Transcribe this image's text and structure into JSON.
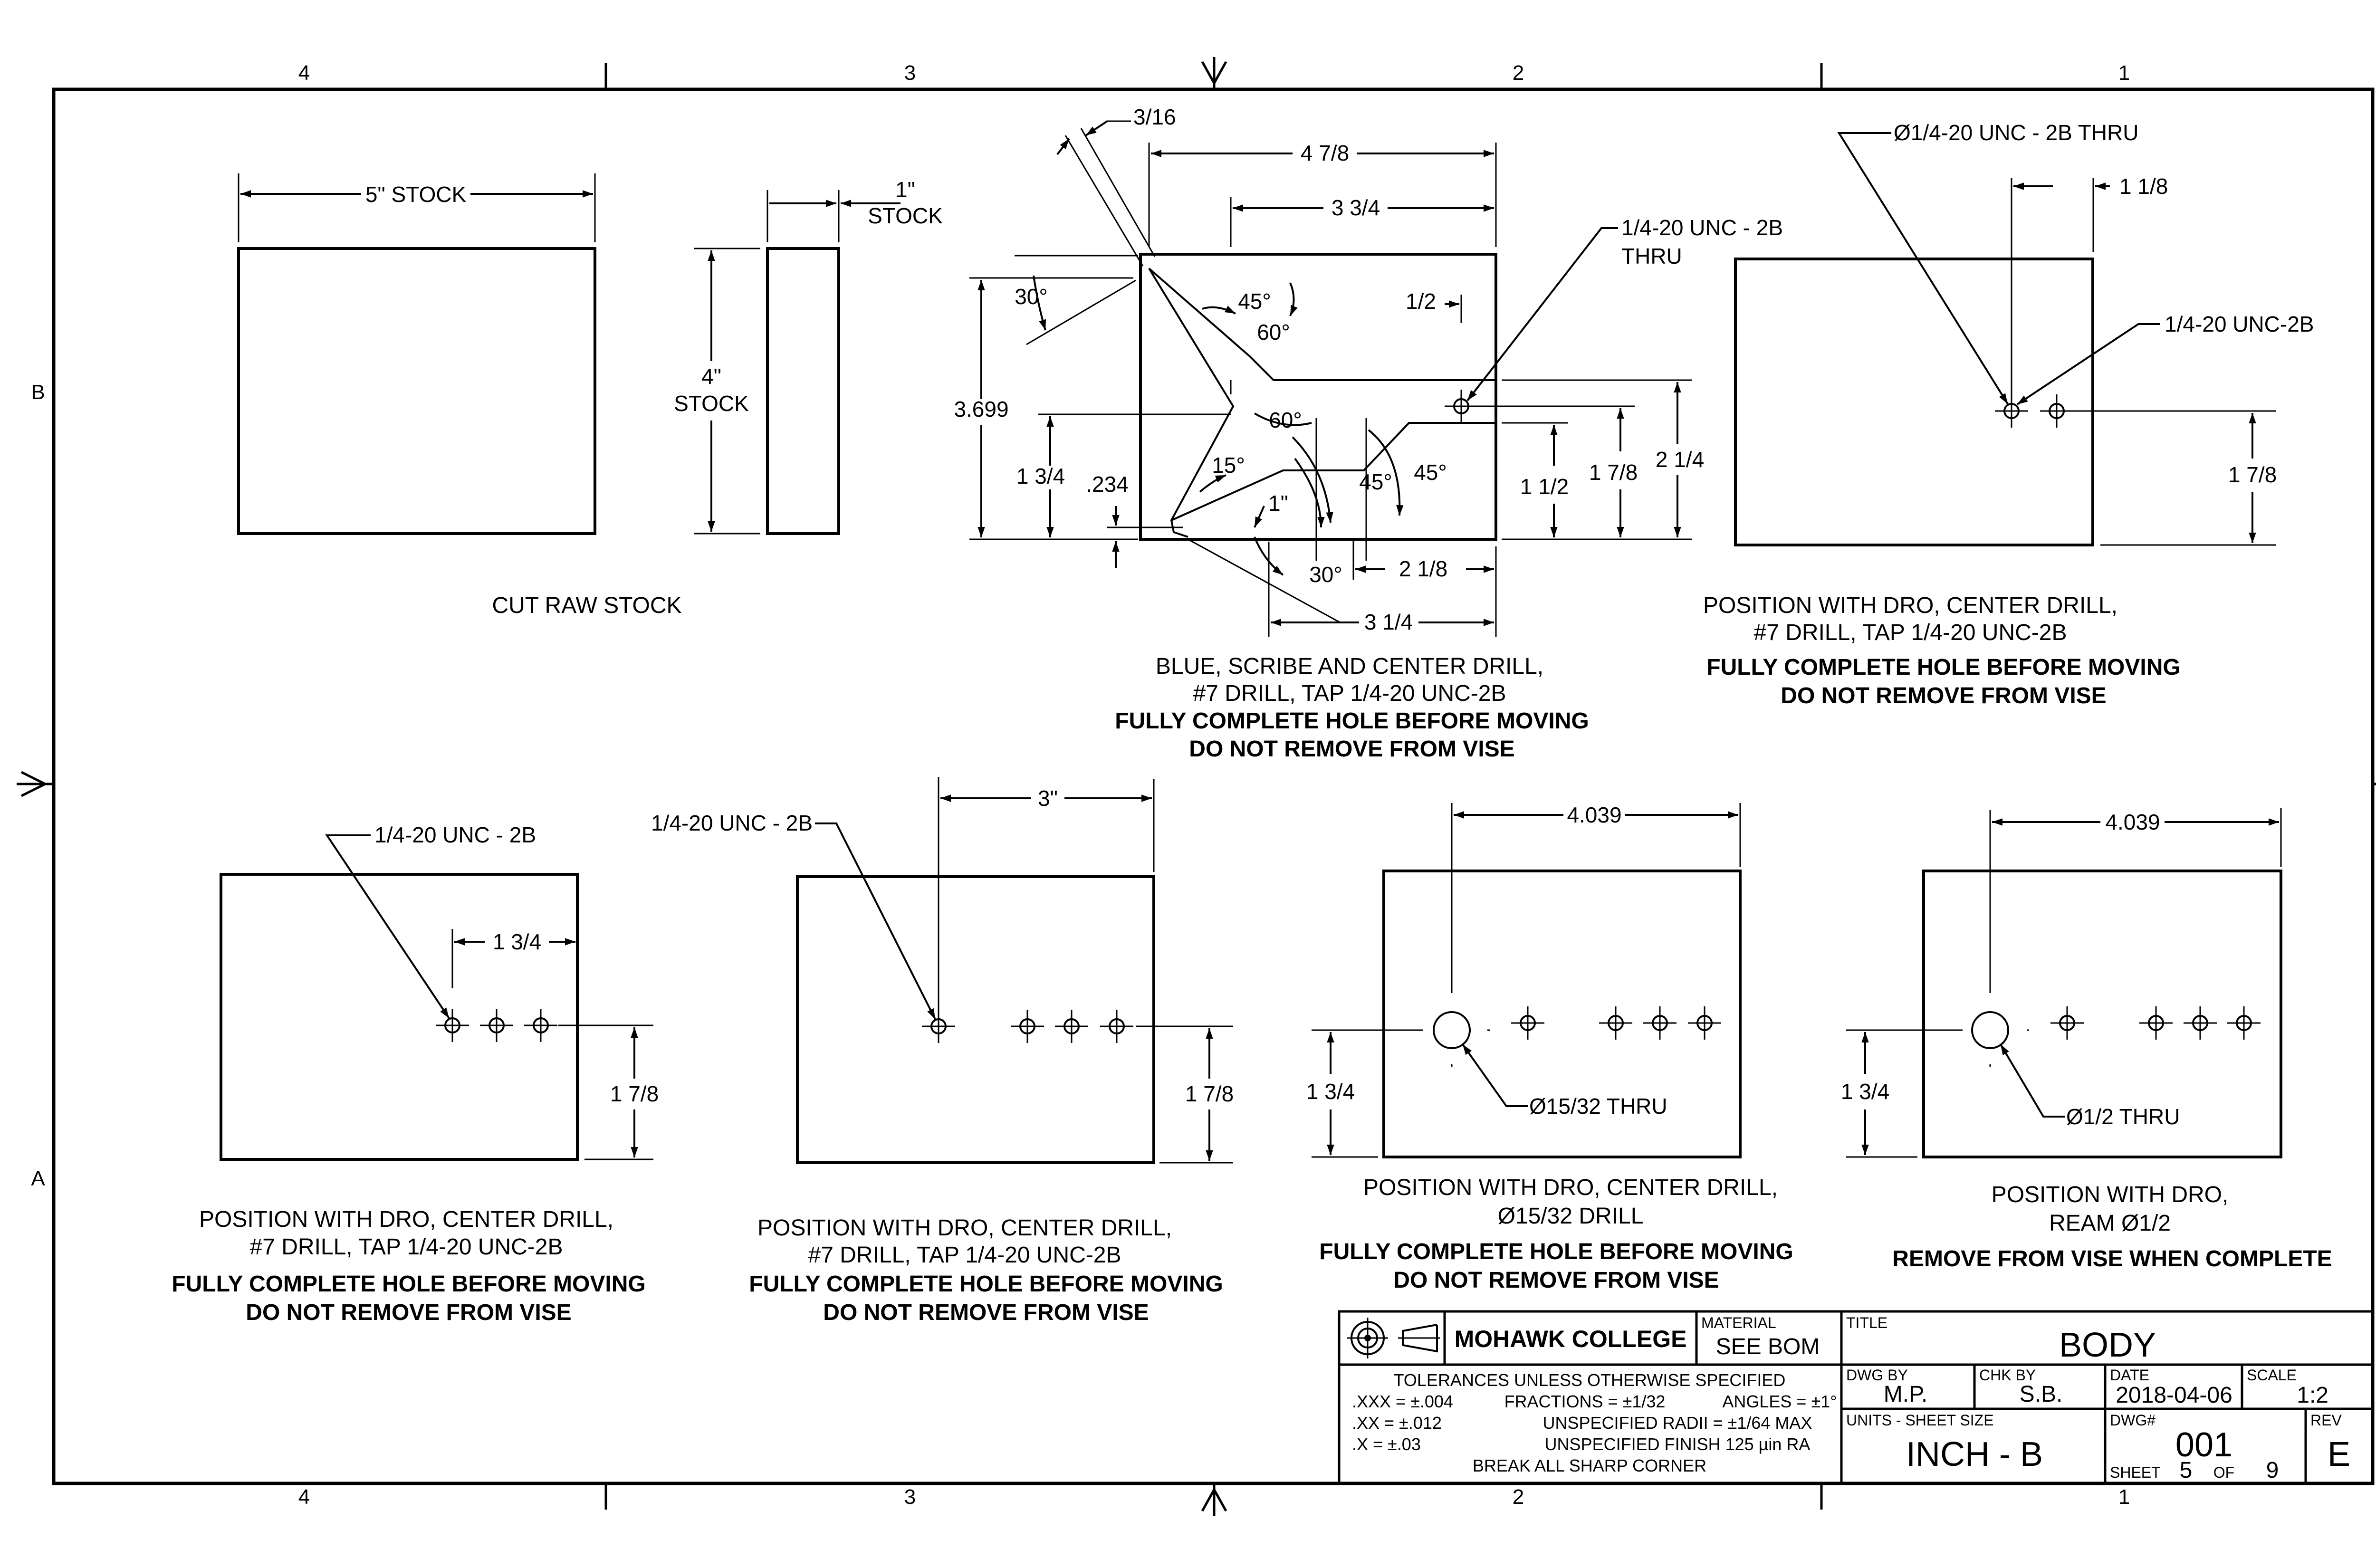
{
  "sheet": {
    "zones_top": [
      "4",
      "3",
      "2",
      "1"
    ],
    "zones_side": [
      "B",
      "A"
    ]
  },
  "views": {
    "stock_width": "5\" STOCK",
    "stock_thick_value": "1\"",
    "stock_thick_label": "STOCK",
    "stock_height_value": "4\"",
    "stock_height_label": "STOCK",
    "cut_raw_stock": "CUT RAW STOCK",
    "v2": {
      "dims": {
        "d316": "3/16",
        "d478": "4 7/8",
        "d334": "3 3/4",
        "d12": "1/2",
        "d3699": "3.699",
        "d134": "1 3/4",
        "d234": ".234",
        "d112": "1 1/2",
        "d178": "1 7/8",
        "d214": "2 1/4",
        "d218": "2 1/8",
        "d314": "3 1/4",
        "d1in": "1\"",
        "a30a": "30°",
        "a45a": "45°",
        "a60a": "60°",
        "a60b": "60°",
        "a15": "15°",
        "a45b": "45°",
        "a45c": "45°",
        "a30b": "30°"
      },
      "callout1": "1/4-20 UNC - 2B",
      "callout2": "THRU",
      "note1": "BLUE, SCRIBE AND CENTER DRILL,",
      "note2": "#7 DRILL, TAP 1/4-20 UNC-2B",
      "bold1": "FULLY COMPLETE HOLE BEFORE MOVING",
      "bold2": "DO NOT REMOVE FROM VISE"
    },
    "v3": {
      "callout_top": "Ø1/4-20 UNC - 2B THRU",
      "callout_side": "1/4-20 UNC-2B",
      "dim_h": "1 1/8",
      "dim_v": "1 7/8",
      "note1": "POSITION WITH DRO, CENTER DRILL,",
      "note2": "#7 DRILL, TAP 1/4-20 UNC-2B",
      "bold1": "FULLY COMPLETE HOLE BEFORE MOVING",
      "bold2": "DO NOT REMOVE FROM VISE"
    },
    "v4": {
      "callout": "1/4-20 UNC - 2B",
      "dim_h": "1 3/4",
      "dim_v": "1 7/8",
      "note1": "POSITION WITH DRO, CENTER DRILL,",
      "note2": "#7 DRILL, TAP 1/4-20 UNC-2B",
      "bold1": "FULLY COMPLETE HOLE BEFORE MOVING",
      "bold2": "DO NOT REMOVE FROM VISE"
    },
    "v5": {
      "callout": "1/4-20 UNC - 2B",
      "dim_h": "3\"",
      "dim_v": "1 7/8",
      "note1": "POSITION WITH DRO, CENTER DRILL,",
      "note2": "#7 DRILL, TAP 1/4-20 UNC-2B",
      "bold1": "FULLY COMPLETE HOLE BEFORE MOVING",
      "bold2": "DO NOT REMOVE FROM VISE"
    },
    "v6": {
      "dim_h": "4.039",
      "dim_v": "1 3/4",
      "callout": "Ø15/32 THRU",
      "note1": "POSITION WITH DRO, CENTER DRILL,",
      "note2": "Ø15/32 DRILL",
      "bold1": "FULLY COMPLETE HOLE BEFORE MOVING",
      "bold2": "DO NOT REMOVE FROM VISE"
    },
    "v7": {
      "dim_h": "4.039",
      "dim_v": "1 3/4",
      "callout": "Ø1/2 THRU",
      "note1": "POSITION WITH DRO,",
      "note2": "REAM Ø1/2",
      "bold1": "REMOVE FROM VISE WHEN COMPLETE"
    }
  },
  "title_block": {
    "college": "MOHAWK COLLEGE",
    "material_label": "MATERIAL",
    "material_value": "SEE BOM",
    "title_label": "TITLE",
    "title_value": "BODY",
    "tol_head": "TOLERANCES UNLESS OTHERWISE SPECIFIED",
    "tol_xxx": ".XXX = ±.004",
    "tol_fractions": "FRACTIONS = ±1/32",
    "tol_angles": "ANGLES = ±1°",
    "tol_xx": ".XX = ±.012",
    "tol_radii": "UNSPECIFIED RADII = ±1/64 MAX",
    "tol_x": ".X = ±.03",
    "tol_finish": "UNSPECIFIED FINISH 125 µin RA",
    "tol_break": "BREAK ALL SHARP CORNER",
    "dwg_by_label": "DWG BY",
    "dwg_by_value": "M.P.",
    "chk_by_label": "CHK BY",
    "chk_by_value": "S.B.",
    "date_label": "DATE",
    "date_value": "2018-04-06",
    "scale_label": "SCALE",
    "scale_value": "1:2",
    "units_label": "UNITS - SHEET SIZE",
    "units_value": "INCH - B",
    "dwgno_label": "DWG#",
    "dwgno_value": "001",
    "sheet_label": "SHEET",
    "sheet_value": "5",
    "of_label": "OF",
    "of_value": "9",
    "rev_label": "REV",
    "rev_value": "E"
  }
}
